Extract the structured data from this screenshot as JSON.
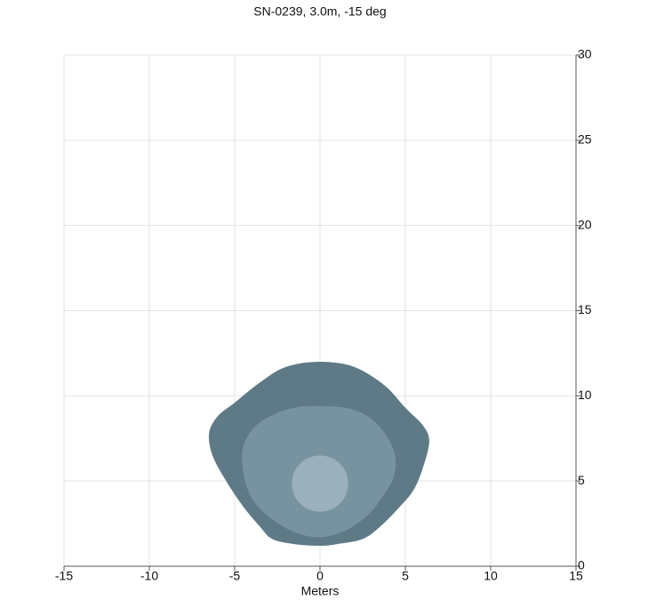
{
  "chart_data": {
    "type": "contour",
    "title": "SN-0239, 3.0m, -15 deg",
    "x_label": "Meters",
    "xlim": [
      -15,
      15
    ],
    "xticks": [
      -15,
      -10,
      -5,
      0,
      5,
      10,
      15
    ],
    "ylim": [
      0,
      30
    ],
    "yticks": [
      0,
      5,
      10,
      15,
      20,
      25,
      30
    ],
    "grid": true,
    "y_axis_side": "right",
    "series": [
      {
        "color": "#5f7a87",
        "x": [
          0,
          2,
          3.8,
          5,
          6,
          6.4,
          6.1,
          5.5,
          4.5,
          3.5,
          2.5,
          1,
          0,
          -1.5,
          -2.8,
          -3.5,
          -4.5,
          -5.5,
          -6.3,
          -6.5,
          -6,
          -5,
          -3.5,
          -2
        ],
        "y": [
          12.0,
          11.7,
          10.6,
          9.3,
          8.3,
          7.4,
          6,
          4.5,
          3.3,
          2.3,
          1.6,
          1.3,
          1.2,
          1.3,
          1.6,
          2.3,
          3.5,
          5,
          6.5,
          7.8,
          8.8,
          9.6,
          10.8,
          11.7
        ]
      },
      {
        "color": "#7893a0",
        "x": [
          0,
          1.5,
          2.8,
          3.8,
          4.4,
          4.3,
          3.6,
          2.8,
          1.5,
          0,
          -1.5,
          -3,
          -4,
          -4.5,
          -4.5,
          -3.8,
          -2.5,
          -1.2
        ],
        "y": [
          9.4,
          9.3,
          8.8,
          7.8,
          6.5,
          5.2,
          4.0,
          3.0,
          2.1,
          1.7,
          2.0,
          2.9,
          4.0,
          5.5,
          7.0,
          8.2,
          9.0,
          9.35
        ]
      },
      {
        "color": "#9ab0ba",
        "x": [
          0,
          0.83,
          1.43,
          1.65,
          1.43,
          0.83,
          0,
          -0.83,
          -1.43,
          -1.65,
          -1.43,
          -0.83
        ],
        "y": [
          6.5,
          6.28,
          5.68,
          4.85,
          4.02,
          3.42,
          3.2,
          3.42,
          4.02,
          4.85,
          5.68,
          6.28
        ]
      }
    ]
  }
}
